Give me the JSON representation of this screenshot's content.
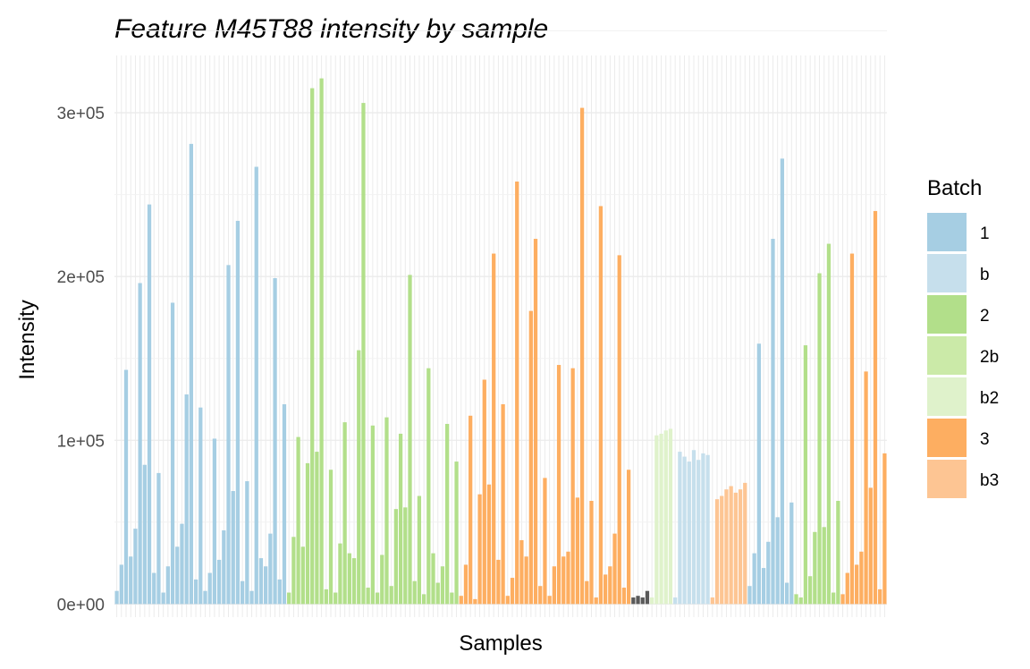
{
  "chart_data": {
    "type": "bar",
    "title": "Feature M45T88 intensity by sample",
    "xlabel": "Samples",
    "ylabel": "Intensity",
    "ylim": [
      -8000,
      335000
    ],
    "yticks": [
      {
        "value": 0,
        "label": "0e+00"
      },
      {
        "value": 100000,
        "label": "1e+05"
      },
      {
        "value": 200000,
        "label": "2e+05"
      },
      {
        "value": 300000,
        "label": "3e+05"
      }
    ],
    "grid": true,
    "legend_position": "right",
    "legend": {
      "title": "Batch",
      "entries": [
        {
          "label": "1",
          "color": "#a6cee3"
        },
        {
          "label": "b",
          "color": "#c6dfec"
        },
        {
          "label": "2",
          "color": "#b2df8a"
        },
        {
          "label": "2b",
          "color": "#cbeaa8"
        },
        {
          "label": "b2",
          "color": "#dff2cb"
        },
        {
          "label": "3",
          "color": "#fdae61"
        },
        {
          "label": "b3",
          "color": "#fdc593"
        }
      ]
    },
    "no_batch_color": "#595959",
    "bar_groups": [
      {
        "batch": "1",
        "values": [
          8000,
          24000,
          143000,
          29000,
          46000,
          196000,
          85000,
          244000,
          19000,
          80000,
          7000,
          23000,
          184000,
          35000,
          49000,
          128000,
          281000,
          15000,
          120000,
          8000,
          19000,
          101000,
          27000,
          45000,
          207000,
          69000,
          234000,
          14000,
          75000,
          8000,
          267000,
          28000,
          23000,
          43000,
          199000,
          15000,
          122000
        ]
      },
      {
        "batch": "2",
        "values": [
          7000,
          41000,
          102000,
          35000,
          86000,
          315000,
          93000,
          321000,
          9000,
          82000,
          7000,
          37000,
          111000,
          31000,
          28000,
          155000,
          306000,
          10000,
          109000,
          7000,
          30000,
          114000,
          11000,
          58000,
          104000,
          59000,
          201000,
          14000,
          66000,
          6000,
          144000,
          31000,
          13000,
          23000,
          110000,
          7000,
          87000
        ]
      },
      {
        "batch": "3",
        "values": [
          5000,
          24000,
          115000,
          3000,
          67000,
          137000,
          73000,
          214000,
          27000,
          122000,
          5000,
          16000,
          258000,
          39000,
          29000,
          179000,
          223000,
          11000,
          77000,
          5000,
          23000,
          146000,
          29000,
          32000,
          144000,
          65000,
          303000,
          14000,
          63000,
          4000,
          243000,
          18000,
          23000,
          43000,
          213000,
          10000,
          82000
        ]
      },
      {
        "batch": "none",
        "values": [
          4000,
          5000,
          4000,
          8000
        ]
      },
      {
        "batch": "b2",
        "values": [
          4000,
          103000,
          104000,
          106000,
          107000
        ]
      },
      {
        "batch": "b",
        "values": [
          4000,
          93000,
          90000,
          87000,
          94000,
          88000,
          92000,
          91000
        ]
      },
      {
        "batch": "b3",
        "values": [
          4000,
          64000,
          66000,
          70000,
          72000,
          68000,
          70000,
          74000
        ]
      },
      {
        "batch": "1",
        "values": [
          11000,
          31000,
          159000,
          22000,
          38000,
          223000,
          53000,
          272000,
          13000,
          62000
        ]
      },
      {
        "batch": "2",
        "values": [
          6000,
          4000,
          158000,
          17000,
          44000,
          202000,
          47000,
          220000,
          7000,
          63000
        ]
      },
      {
        "batch": "3",
        "values": [
          6000,
          19000,
          214000,
          24000,
          32000,
          142000,
          71000,
          240000,
          9000,
          92000
        ]
      }
    ]
  }
}
